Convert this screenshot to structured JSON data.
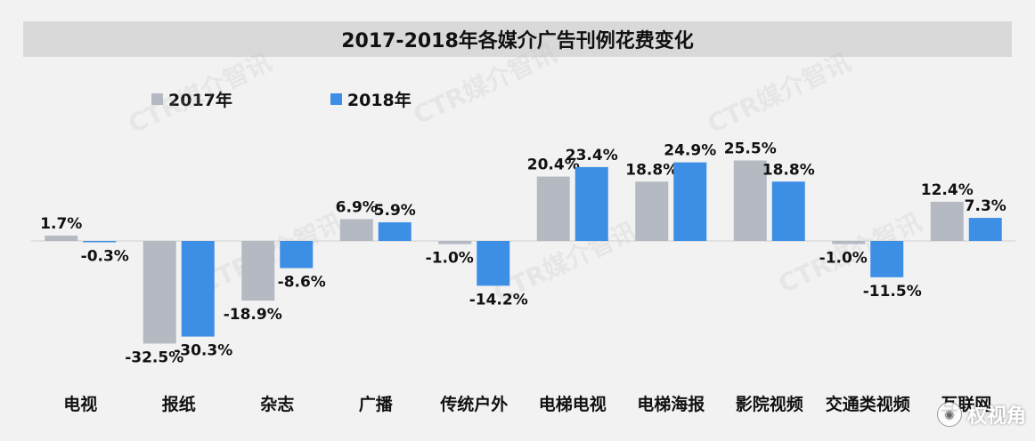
{
  "chart_data": {
    "type": "bar",
    "title": "2017-2018年各媒介广告刊例花费变化",
    "categories": [
      "电视",
      "报纸",
      "杂志",
      "广播",
      "传统户外",
      "电梯电视",
      "电梯海报",
      "影院视频",
      "交通类视频",
      "互联网"
    ],
    "series": [
      {
        "name": "2017年",
        "values": [
          1.7,
          -32.5,
          -18.9,
          6.9,
          -1.0,
          20.4,
          18.8,
          25.5,
          -1.0,
          12.4
        ]
      },
      {
        "name": "2018年",
        "values": [
          -0.3,
          -30.3,
          -8.6,
          5.9,
          -14.2,
          23.4,
          24.9,
          18.8,
          -11.5,
          7.3
        ]
      }
    ],
    "value_suffix": "%",
    "ylim": [
      -35,
      30
    ],
    "legend_position": "top-left",
    "grid": false
  },
  "colors": {
    "series_2017": "#b4b9c2",
    "series_2018": "#3d8fe6",
    "background": "#f2f2f2",
    "title_bar": "#d9d9d9"
  },
  "watermarks": {
    "diagonal_text": "CTR媒介智讯",
    "corner_text": "权视角"
  }
}
